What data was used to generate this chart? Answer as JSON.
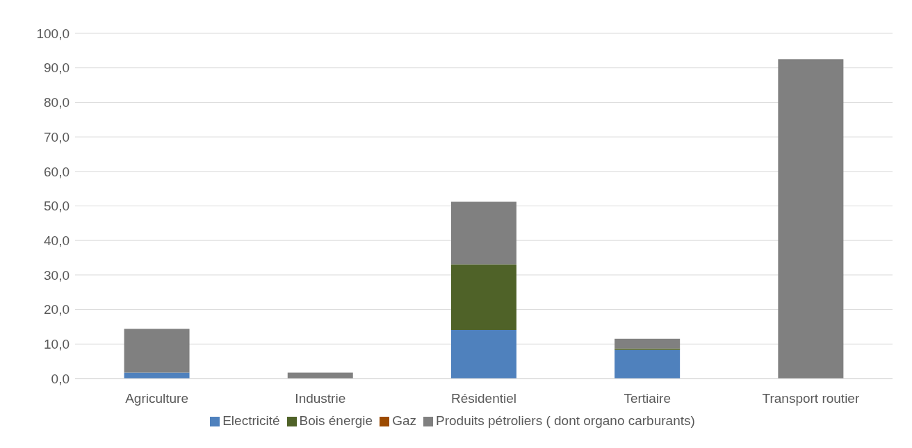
{
  "chart_data": {
    "type": "bar",
    "stacked": true,
    "categories": [
      "Agriculture",
      "Industrie",
      "Résidentiel",
      "Tertiaire",
      "Transport routier"
    ],
    "series": [
      {
        "name": "Electricité",
        "color": "#4f81bd",
        "values": [
          1.7,
          0,
          14.1,
          8.3,
          0
        ]
      },
      {
        "name": "Bois énergie",
        "color": "#4f6228",
        "values": [
          0,
          0,
          19.0,
          0.4,
          0
        ]
      },
      {
        "name": "Gaz",
        "color": "#9c4a00",
        "values": [
          0,
          0,
          0,
          0,
          0
        ]
      },
      {
        "name": "Produits pétroliers ( dont organo carburants)",
        "color": "#808080",
        "values": [
          12.7,
          1.7,
          18.1,
          2.8,
          92.5
        ]
      }
    ],
    "ylim": [
      0,
      100
    ],
    "yticks": [
      {
        "value": 0,
        "label": "0,0"
      },
      {
        "value": 10,
        "label": "10,0"
      },
      {
        "value": 20,
        "label": "20,0"
      },
      {
        "value": 30,
        "label": "30,0"
      },
      {
        "value": 40,
        "label": "40,0"
      },
      {
        "value": 50,
        "label": "50,0"
      },
      {
        "value": 60,
        "label": "60,0"
      },
      {
        "value": 70,
        "label": "70,0"
      },
      {
        "value": 80,
        "label": "80,0"
      },
      {
        "value": 90,
        "label": "90,0"
      },
      {
        "value": 100,
        "label": "100,0"
      }
    ],
    "grid": "y",
    "legend": "bottom"
  }
}
